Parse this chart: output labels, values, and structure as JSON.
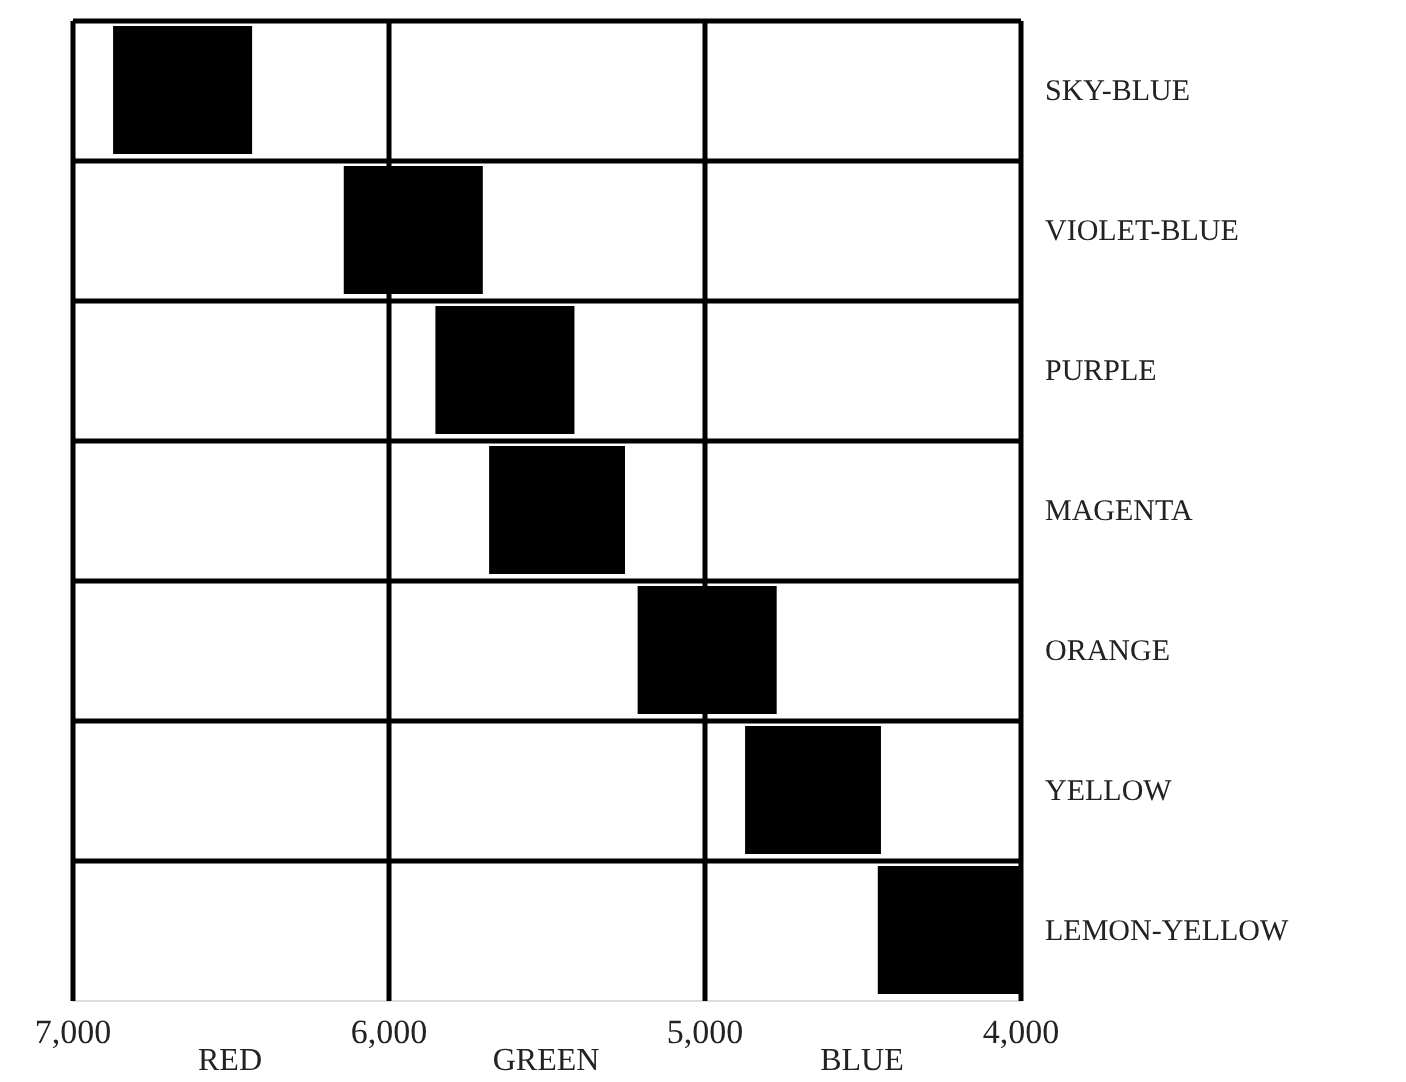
{
  "chart_data": {
    "type": "bar",
    "orientation": "horizontal",
    "categories": [
      "SKY-BLUE",
      "VIOLET-BLUE",
      "PURPLE",
      "MAGENTA",
      "ORANGE",
      "YELLOW",
      "LEMON-YELLOW"
    ],
    "base": [
      6870,
      6140,
      5850,
      5680,
      5210,
      4870,
      4450
    ],
    "values": [
      -440,
      -440,
      -440,
      -430,
      -440,
      -430,
      -450
    ],
    "color": "#000000",
    "xlim": [
      7000,
      4000
    ],
    "xticks": [
      {
        "value": 7000,
        "label": "7,000"
      },
      {
        "value": 6000,
        "label": "6,000"
      },
      {
        "value": 5000,
        "label": "5,000"
      },
      {
        "value": 4000,
        "label": "4,000"
      }
    ],
    "grid": true,
    "annotations": [
      "RED",
      "GREEN",
      "BLUE"
    ]
  }
}
